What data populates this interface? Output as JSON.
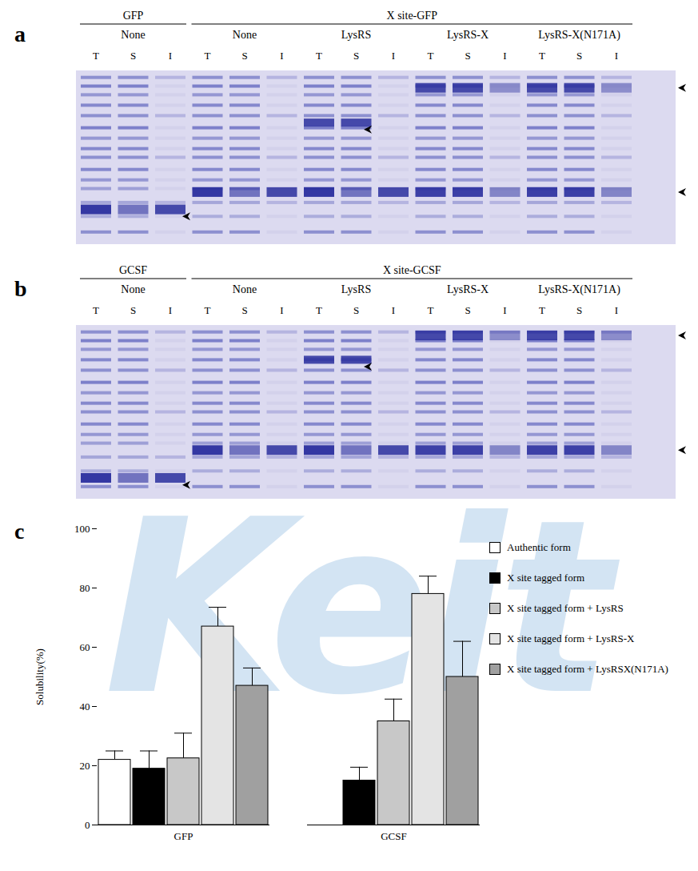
{
  "panel_labels": [
    "a",
    "b",
    "c"
  ],
  "watermark": "Keit",
  "gels": [
    {
      "groups": [
        {
          "header": "GFP",
          "conditions": [
            {
              "name": "None",
              "lanes": [
                "T",
                "S",
                "I"
              ]
            }
          ]
        },
        {
          "header": "X site-GFP",
          "conditions": [
            {
              "name": "None",
              "lanes": [
                "T",
                "S",
                "I"
              ]
            },
            {
              "name": "LysRS",
              "lanes": [
                "T",
                "S",
                "I"
              ]
            },
            {
              "name": "LysRS-X",
              "lanes": [
                "T",
                "S",
                "I"
              ]
            },
            {
              "name": "LysRS-X(N171A)",
              "lanes": [
                "T",
                "S",
                "I"
              ]
            }
          ]
        }
      ]
    },
    {
      "groups": [
        {
          "header": "GCSF",
          "conditions": [
            {
              "name": "None",
              "lanes": [
                "T",
                "S",
                "I"
              ]
            }
          ]
        },
        {
          "header": "X site-GCSF",
          "conditions": [
            {
              "name": "None",
              "lanes": [
                "T",
                "S",
                "I"
              ]
            },
            {
              "name": "LysRS",
              "lanes": [
                "T",
                "S",
                "I"
              ]
            },
            {
              "name": "LysRS-X",
              "lanes": [
                "T",
                "S",
                "I"
              ]
            },
            {
              "name": "LysRS-X(N171A)",
              "lanes": [
                "T",
                "S",
                "I"
              ]
            }
          ]
        }
      ]
    }
  ],
  "chart_data": {
    "type": "bar",
    "categories": [
      "GFP",
      "GCSF"
    ],
    "ylabel": "Solubility(%)",
    "ylim": [
      0,
      100
    ],
    "yticks": [
      0,
      20,
      40,
      60,
      80,
      100
    ],
    "legend": "right",
    "series": [
      {
        "name": "Authentic form",
        "color": "#ffffff",
        "values": [
          22,
          null
        ],
        "errors": [
          3,
          null
        ]
      },
      {
        "name": "X site tagged form",
        "color": "#000000",
        "values": [
          19,
          15
        ],
        "errors": [
          6,
          4.5
        ]
      },
      {
        "name": "X site tagged form + LysRS",
        "color": "#c8c8c8",
        "values": [
          22.5,
          35
        ],
        "errors": [
          8.5,
          7.5
        ]
      },
      {
        "name": "X site tagged form + LysRS-X",
        "color": "#e4e4e4",
        "values": [
          67,
          78
        ],
        "errors": [
          6.5,
          6
        ]
      },
      {
        "name": "X site tagged form + LysRSX(N171A)",
        "color": "#a0a0a0",
        "values": [
          47,
          50
        ],
        "errors": [
          6,
          12
        ]
      }
    ]
  }
}
